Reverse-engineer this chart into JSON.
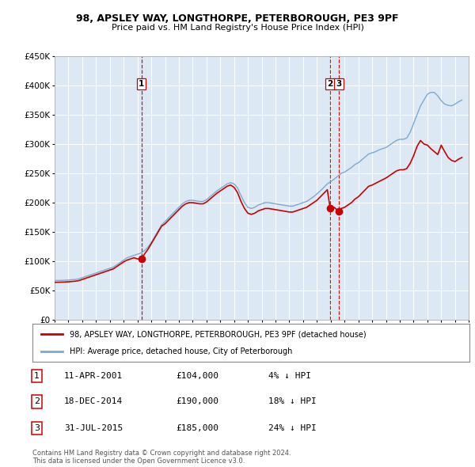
{
  "title": "98, APSLEY WAY, LONGTHORPE, PETERBOROUGH, PE3 9PF",
  "subtitle": "Price paid vs. HM Land Registry's House Price Index (HPI)",
  "ylim": [
    0,
    450000
  ],
  "yticks": [
    0,
    50000,
    100000,
    150000,
    200000,
    250000,
    300000,
    350000,
    400000,
    450000
  ],
  "xstart": 1995,
  "xend": 2025,
  "plot_bg_color": "#dce9f5",
  "grid_color": "#ffffff",
  "red_line_color": "#cc0000",
  "blue_line_color": "#7aaad0",
  "sale_marker_color": "#cc0000",
  "vline_color": "#cc0000",
  "legend_label_red": "98, APSLEY WAY, LONGTHORPE, PETERBOROUGH, PE3 9PF (detached house)",
  "legend_label_blue": "HPI: Average price, detached house, City of Peterborough",
  "transactions": [
    {
      "label": "1",
      "date_str": "11-APR-2001",
      "year": 2001.28,
      "price": 104000,
      "pct": "4%",
      "direction": "↓"
    },
    {
      "label": "2",
      "date_str": "18-DEC-2014",
      "year": 2014.96,
      "price": 190000,
      "pct": "18%",
      "direction": "↓"
    },
    {
      "label": "3",
      "date_str": "31-JUL-2015",
      "year": 2015.58,
      "price": 185000,
      "pct": "24%",
      "direction": "↓"
    }
  ],
  "footer_line1": "Contains HM Land Registry data © Crown copyright and database right 2024.",
  "footer_line2": "This data is licensed under the Open Government Licence v3.0.",
  "hpi_data": {
    "years": [
      1995.0,
      1995.25,
      1995.5,
      1995.75,
      1996.0,
      1996.25,
      1996.5,
      1996.75,
      1997.0,
      1997.25,
      1997.5,
      1997.75,
      1998.0,
      1998.25,
      1998.5,
      1998.75,
      1999.0,
      1999.25,
      1999.5,
      1999.75,
      2000.0,
      2000.25,
      2000.5,
      2000.75,
      2001.0,
      2001.25,
      2001.5,
      2001.75,
      2002.0,
      2002.25,
      2002.5,
      2002.75,
      2003.0,
      2003.25,
      2003.5,
      2003.75,
      2004.0,
      2004.25,
      2004.5,
      2004.75,
      2005.0,
      2005.25,
      2005.5,
      2005.75,
      2006.0,
      2006.25,
      2006.5,
      2006.75,
      2007.0,
      2007.25,
      2007.5,
      2007.75,
      2008.0,
      2008.25,
      2008.5,
      2008.75,
      2009.0,
      2009.25,
      2009.5,
      2009.75,
      2010.0,
      2010.25,
      2010.5,
      2010.75,
      2011.0,
      2011.25,
      2011.5,
      2011.75,
      2012.0,
      2012.25,
      2012.5,
      2012.75,
      2013.0,
      2013.25,
      2013.5,
      2013.75,
      2014.0,
      2014.25,
      2014.5,
      2014.75,
      2015.0,
      2015.25,
      2015.5,
      2015.75,
      2016.0,
      2016.25,
      2016.5,
      2016.75,
      2017.0,
      2017.25,
      2017.5,
      2017.75,
      2018.0,
      2018.25,
      2018.5,
      2018.75,
      2019.0,
      2019.25,
      2019.5,
      2019.75,
      2020.0,
      2020.25,
      2020.5,
      2020.75,
      2021.0,
      2021.25,
      2021.5,
      2021.75,
      2022.0,
      2022.25,
      2022.5,
      2022.75,
      2023.0,
      2023.25,
      2023.5,
      2023.75,
      2024.0,
      2024.25,
      2024.5
    ],
    "values": [
      67000,
      67200,
      67400,
      67600,
      68000,
      68500,
      69000,
      70000,
      72000,
      74000,
      76000,
      78000,
      80000,
      82000,
      84000,
      86000,
      88000,
      90000,
      94000,
      98000,
      102000,
      106000,
      108000,
      110000,
      112000,
      114000,
      118000,
      124000,
      132000,
      142000,
      152000,
      162000,
      168000,
      174000,
      180000,
      186000,
      192000,
      198000,
      202000,
      204000,
      204000,
      203000,
      202000,
      202000,
      205000,
      210000,
      215000,
      220000,
      224000,
      228000,
      232000,
      234000,
      232000,
      225000,
      212000,
      200000,
      192000,
      190000,
      192000,
      196000,
      198000,
      200000,
      200000,
      199000,
      198000,
      197000,
      196000,
      195000,
      194000,
      194000,
      196000,
      198000,
      200000,
      202000,
      206000,
      210000,
      215000,
      220000,
      226000,
      232000,
      236000,
      240000,
      245000,
      250000,
      252000,
      256000,
      260000,
      265000,
      268000,
      273000,
      278000,
      283000,
      285000,
      287000,
      290000,
      292000,
      294000,
      298000,
      302000,
      306000,
      308000,
      308000,
      310000,
      320000,
      335000,
      350000,
      365000,
      375000,
      385000,
      388000,
      388000,
      382000,
      374000,
      368000,
      366000,
      365000,
      368000,
      372000,
      375000
    ]
  },
  "red_data": {
    "years": [
      1995.0,
      1995.25,
      1995.5,
      1995.75,
      1996.0,
      1996.25,
      1996.5,
      1996.75,
      1997.0,
      1997.25,
      1997.5,
      1997.75,
      1998.0,
      1998.25,
      1998.5,
      1998.75,
      1999.0,
      1999.25,
      1999.5,
      1999.75,
      2000.0,
      2000.25,
      2000.5,
      2000.75,
      2001.0,
      2001.28,
      2001.5,
      2001.75,
      2002.0,
      2002.25,
      2002.5,
      2002.75,
      2003.0,
      2003.25,
      2003.5,
      2003.75,
      2004.0,
      2004.25,
      2004.5,
      2004.75,
      2005.0,
      2005.25,
      2005.5,
      2005.75,
      2006.0,
      2006.25,
      2006.5,
      2006.75,
      2007.0,
      2007.25,
      2007.5,
      2007.75,
      2008.0,
      2008.25,
      2008.5,
      2008.75,
      2009.0,
      2009.25,
      2009.5,
      2009.75,
      2010.0,
      2010.25,
      2010.5,
      2010.75,
      2011.0,
      2011.25,
      2011.5,
      2011.75,
      2012.0,
      2012.25,
      2012.5,
      2012.75,
      2013.0,
      2013.25,
      2013.5,
      2013.75,
      2014.0,
      2014.25,
      2014.5,
      2014.75,
      2014.96,
      2015.0,
      2015.25,
      2015.58,
      2015.75,
      2016.0,
      2016.25,
      2016.5,
      2016.75,
      2017.0,
      2017.25,
      2017.5,
      2017.75,
      2018.0,
      2018.25,
      2018.5,
      2018.75,
      2019.0,
      2019.25,
      2019.5,
      2019.75,
      2020.0,
      2020.25,
      2020.5,
      2020.75,
      2021.0,
      2021.25,
      2021.5,
      2021.75,
      2022.0,
      2022.25,
      2022.5,
      2022.75,
      2023.0,
      2023.25,
      2023.5,
      2023.75,
      2024.0,
      2024.25,
      2024.5
    ],
    "values": [
      64000,
      64200,
      64400,
      64600,
      65000,
      65500,
      66000,
      67000,
      69000,
      71000,
      73000,
      75000,
      77000,
      79000,
      81000,
      83000,
      85000,
      87000,
      91000,
      95000,
      99000,
      102000,
      104000,
      106000,
      104000,
      104000,
      112000,
      120000,
      130000,
      140000,
      150000,
      160000,
      164000,
      170000,
      176000,
      182000,
      188000,
      194000,
      198000,
      200000,
      200000,
      199000,
      198000,
      198000,
      201000,
      206000,
      211000,
      216000,
      220000,
      224000,
      228000,
      230000,
      226000,
      217000,
      202000,
      190000,
      182000,
      180000,
      182000,
      186000,
      188000,
      190000,
      190000,
      189000,
      188000,
      187000,
      186000,
      185000,
      184000,
      184000,
      186000,
      188000,
      190000,
      192000,
      196000,
      200000,
      204000,
      210000,
      216000,
      222000,
      190000,
      185000,
      192000,
      185000,
      190000,
      192000,
      196000,
      200000,
      206000,
      210000,
      216000,
      222000,
      228000,
      230000,
      233000,
      236000,
      239000,
      242000,
      246000,
      250000,
      254000,
      256000,
      256000,
      258000,
      267000,
      280000,
      296000,
      306000,
      300000,
      298000,
      292000,
      287000,
      282000,
      298000,
      287000,
      277000,
      272000,
      270000,
      274000,
      277000
    ]
  }
}
